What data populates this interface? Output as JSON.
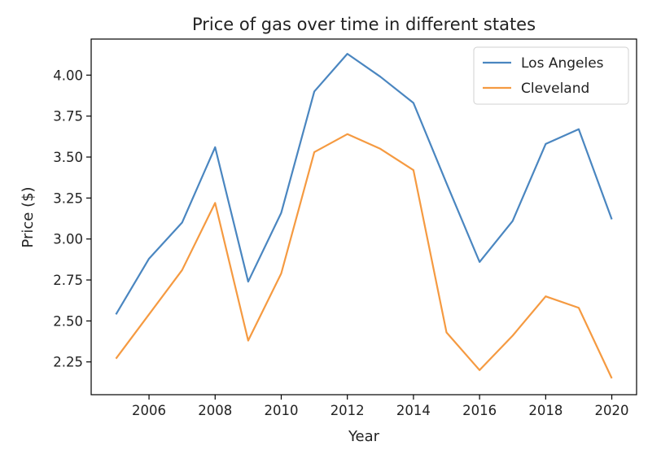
{
  "chart_data": {
    "type": "line",
    "title": "Price of gas over time in different states",
    "xlabel": "Year",
    "ylabel": "Price ($)",
    "xlim": [
      2004.25,
      2020.75
    ],
    "ylim": [
      2.05,
      4.22
    ],
    "xticks": [
      2006,
      2008,
      2010,
      2012,
      2014,
      2016,
      2018,
      2020
    ],
    "yticks": [
      2.25,
      2.5,
      2.75,
      3.0,
      3.25,
      3.5,
      3.75,
      4.0
    ],
    "ytick_labels": [
      "2.25",
      "2.50",
      "2.75",
      "3.00",
      "3.25",
      "3.50",
      "3.75",
      "4.00"
    ],
    "legend_position": "top-right",
    "grid": false,
    "x": [
      2005,
      2006,
      2007,
      2008,
      2009,
      2010,
      2011,
      2012,
      2013,
      2014,
      2015,
      2016,
      2017,
      2018,
      2019,
      2020
    ],
    "series": [
      {
        "name": "Los Angeles",
        "color": "#4a86c0",
        "values": [
          2.54,
          2.88,
          3.1,
          3.56,
          2.74,
          3.16,
          3.9,
          4.13,
          3.99,
          3.83,
          3.34,
          2.86,
          3.11,
          3.58,
          3.67,
          3.12
        ]
      },
      {
        "name": "Cleveland",
        "color": "#f59a41",
        "values": [
          2.27,
          2.54,
          2.81,
          3.22,
          2.38,
          2.79,
          3.53,
          3.64,
          3.55,
          3.42,
          2.43,
          2.2,
          2.41,
          2.65,
          2.58,
          2.15
        ]
      }
    ]
  }
}
